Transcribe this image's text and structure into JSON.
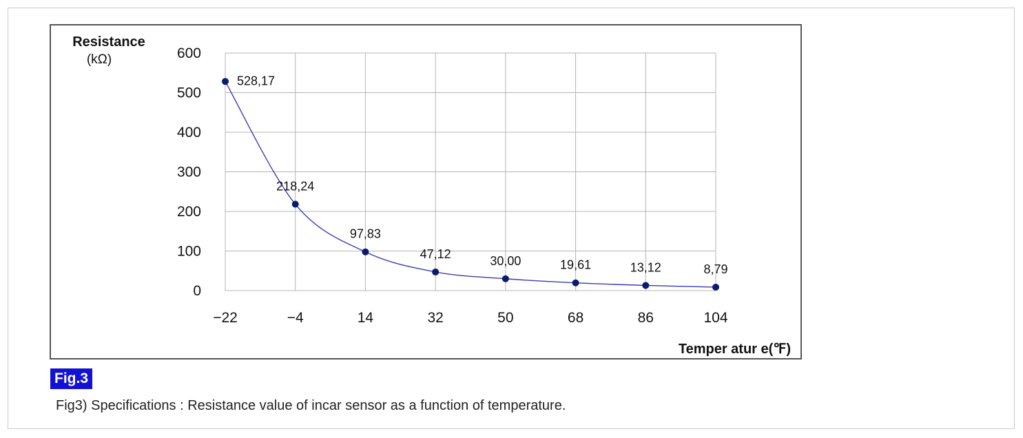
{
  "figure": {
    "badge_label": "Fig.3",
    "caption": "Fig3) Specifications : Resistance value of incar sensor as a function of temperature."
  },
  "chart_data": {
    "type": "line",
    "x": [
      -22,
      -4,
      14,
      32,
      50,
      68,
      86,
      104
    ],
    "x_tick_labels": [
      "−22",
      "−4",
      "14",
      "32",
      "50",
      "68",
      "86",
      "104"
    ],
    "y_ticks": [
      0,
      100,
      200,
      300,
      400,
      500,
      600
    ],
    "y_tick_labels": [
      "0",
      "100",
      "200",
      "300",
      "400",
      "500",
      "600"
    ],
    "series": [
      {
        "values": [
          528.17,
          218.24,
          97.83,
          47.12,
          30.0,
          19.61,
          13.12,
          8.79
        ],
        "data_labels": [
          "528,17",
          "218,24",
          "97,83",
          "47,12",
          "30,00",
          "19,61",
          "13,12",
          "8,79"
        ]
      }
    ],
    "ylabel_line1": "Resistance",
    "ylabel_line2": "(kΩ)",
    "xlabel": "Temper atur e(℉)",
    "xlim": [
      -22,
      104
    ],
    "ylim": [
      0,
      600
    ],
    "grid": true,
    "colors": {
      "line": "#3a3ab4",
      "marker": "#0a1a6e",
      "grid": "#b4b4b4"
    }
  }
}
